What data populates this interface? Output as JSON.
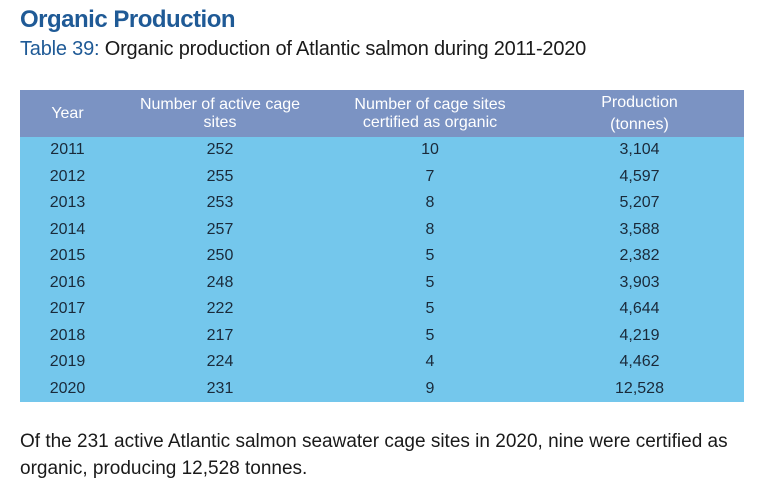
{
  "heading": "Organic Production",
  "caption": {
    "label": "Table 39:",
    "text": " Organic production of Atlantic salmon during 2011-2020"
  },
  "table": {
    "headers": [
      "Year",
      "Number of active cage sites",
      "Number of cage sites certified as organic",
      "Production (tonnes)"
    ],
    "rows": [
      [
        "2011",
        "252",
        "10",
        "3,104"
      ],
      [
        "2012",
        "255",
        "7",
        "4,597"
      ],
      [
        "2013",
        "253",
        "8",
        "5,207"
      ],
      [
        "2014",
        "257",
        "8",
        "3,588"
      ],
      [
        "2015",
        "250",
        "5",
        "2,382"
      ],
      [
        "2016",
        "248",
        "5",
        "3,903"
      ],
      [
        "2017",
        "222",
        "5",
        "4,644"
      ],
      [
        "2018",
        "217",
        "5",
        "4,219"
      ],
      [
        "2019",
        "224",
        "4",
        "4,462"
      ],
      [
        "2020",
        "231",
        "9",
        "12,528"
      ]
    ]
  },
  "note": "Of the 231 active Atlantic salmon seawater cage sites in 2020, nine were certified as organic, producing 12,528 tonnes.",
  "colors": {
    "heading": "#1f5a96",
    "header_bg": "#7b93c3",
    "body_bg": "#74c7ec"
  }
}
